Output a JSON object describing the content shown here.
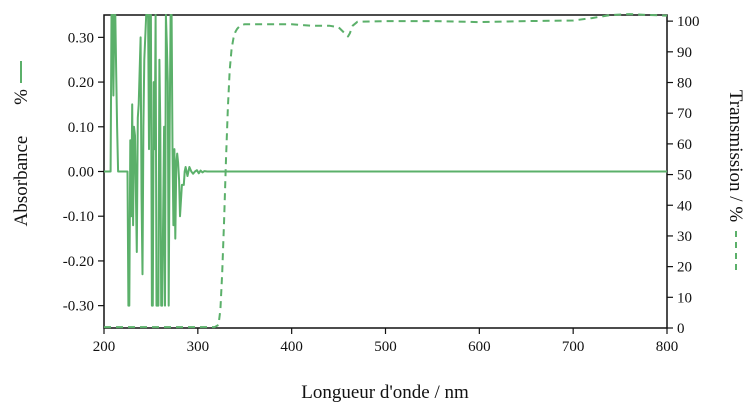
{
  "chart_data": {
    "type": "line",
    "xlabel": "Longueur d'onde / nm",
    "ylabel_left": "Absorbance",
    "ylabel_left_unit": "%",
    "ylabel_right": "Transmission / %",
    "xlim": [
      200,
      800
    ],
    "ylim_left": [
      -0.35,
      0.35
    ],
    "ylim_right": [
      0,
      102
    ],
    "x_ticks": [
      200,
      300,
      400,
      500,
      600,
      700,
      800
    ],
    "y_left_ticks": [
      0.3,
      0.2,
      0.1,
      0.0,
      -0.1,
      -0.2,
      -0.3
    ],
    "y_left_tick_labels": [
      "0.30",
      "0.20",
      "0.10",
      "0.00",
      "-0.10",
      "-0.20",
      "-0.30"
    ],
    "y_right_ticks": [
      0,
      10,
      20,
      30,
      40,
      50,
      60,
      70,
      80,
      90,
      100
    ],
    "y_right_tick_labels": [
      "0",
      "10",
      "20",
      "30",
      "40",
      "50",
      "60",
      "70",
      "80",
      "90",
      "100"
    ],
    "grid": false,
    "line_color": "#5bb06a",
    "series": [
      {
        "axis": "left",
        "style": "solid",
        "x": [
          200,
          207,
          208,
          209,
          210,
          211,
          212,
          213,
          214,
          215,
          218,
          221,
          225,
          226,
          227,
          228,
          229,
          230,
          231,
          232,
          233,
          235,
          236,
          237,
          239,
          240,
          241,
          242,
          243,
          245,
          247,
          248,
          249,
          250,
          251,
          252,
          253,
          254,
          255,
          256,
          257,
          258,
          259,
          260,
          261,
          262,
          264,
          265,
          266,
          267,
          268,
          269,
          270,
          271,
          272,
          273,
          274,
          275,
          276,
          277,
          278,
          279,
          280,
          281,
          283,
          285,
          286,
          287,
          289,
          291,
          293,
          295,
          297,
          299,
          301,
          303,
          305,
          307,
          310,
          313,
          316,
          320,
          325,
          330,
          340,
          400,
          500,
          600,
          700,
          800
        ],
        "values": [
          0.0,
          0.0,
          0.35,
          0.35,
          0.17,
          0.35,
          0.35,
          0.22,
          0.1,
          0.0,
          0.0,
          0.0,
          0.0,
          -0.3,
          -0.3,
          0.07,
          -0.1,
          0.15,
          -0.12,
          0.1,
          0.08,
          -0.18,
          0.12,
          0.15,
          0.3,
          -0.05,
          -0.23,
          0.1,
          0.25,
          0.35,
          0.35,
          0.05,
          0.35,
          0.35,
          -0.3,
          -0.3,
          0.2,
          0.05,
          0.35,
          -0.3,
          -0.3,
          -0.3,
          0.25,
          0.1,
          -0.3,
          -0.3,
          0.1,
          -0.3,
          0.35,
          0.28,
          0.2,
          -0.3,
          0.1,
          0.35,
          0.35,
          0.05,
          -0.12,
          0.05,
          -0.15,
          0.02,
          0.04,
          0.02,
          -0.02,
          -0.1,
          -0.03,
          -0.03,
          0.0,
          0.01,
          -0.01,
          0.01,
          0.0,
          -0.005,
          0.0,
          0.003,
          -0.004,
          0.002,
          -0.002,
          0.001,
          0.0,
          0.0,
          0.0,
          0.0,
          0.0,
          0.0,
          0.0,
          0.0,
          0.0,
          0.0,
          0.0,
          0.0
        ]
      },
      {
        "axis": "right",
        "style": "dashed",
        "x": [
          200,
          250,
          300,
          318,
          322,
          324,
          326,
          328,
          330,
          332,
          334,
          336,
          338,
          340,
          342,
          345,
          350,
          360,
          380,
          400,
          420,
          440,
          450,
          455,
          458,
          460,
          462,
          465,
          470,
          500,
          550,
          600,
          650,
          700,
          720,
          740,
          760,
          780,
          800
        ],
        "values": [
          0.3,
          0.3,
          0.3,
          0.3,
          1.0,
          6.0,
          18.0,
          35.0,
          55.0,
          72.0,
          84.0,
          91.0,
          94.5,
          96.5,
          97.5,
          98.5,
          99.0,
          99.0,
          99.0,
          99.0,
          98.5,
          98.5,
          98.0,
          96.5,
          95.5,
          95.0,
          96.0,
          98.5,
          99.8,
          100.0,
          100.0,
          99.7,
          100.0,
          100.2,
          101.0,
          102.0,
          102.3,
          102.0,
          101.8
        ]
      }
    ]
  }
}
